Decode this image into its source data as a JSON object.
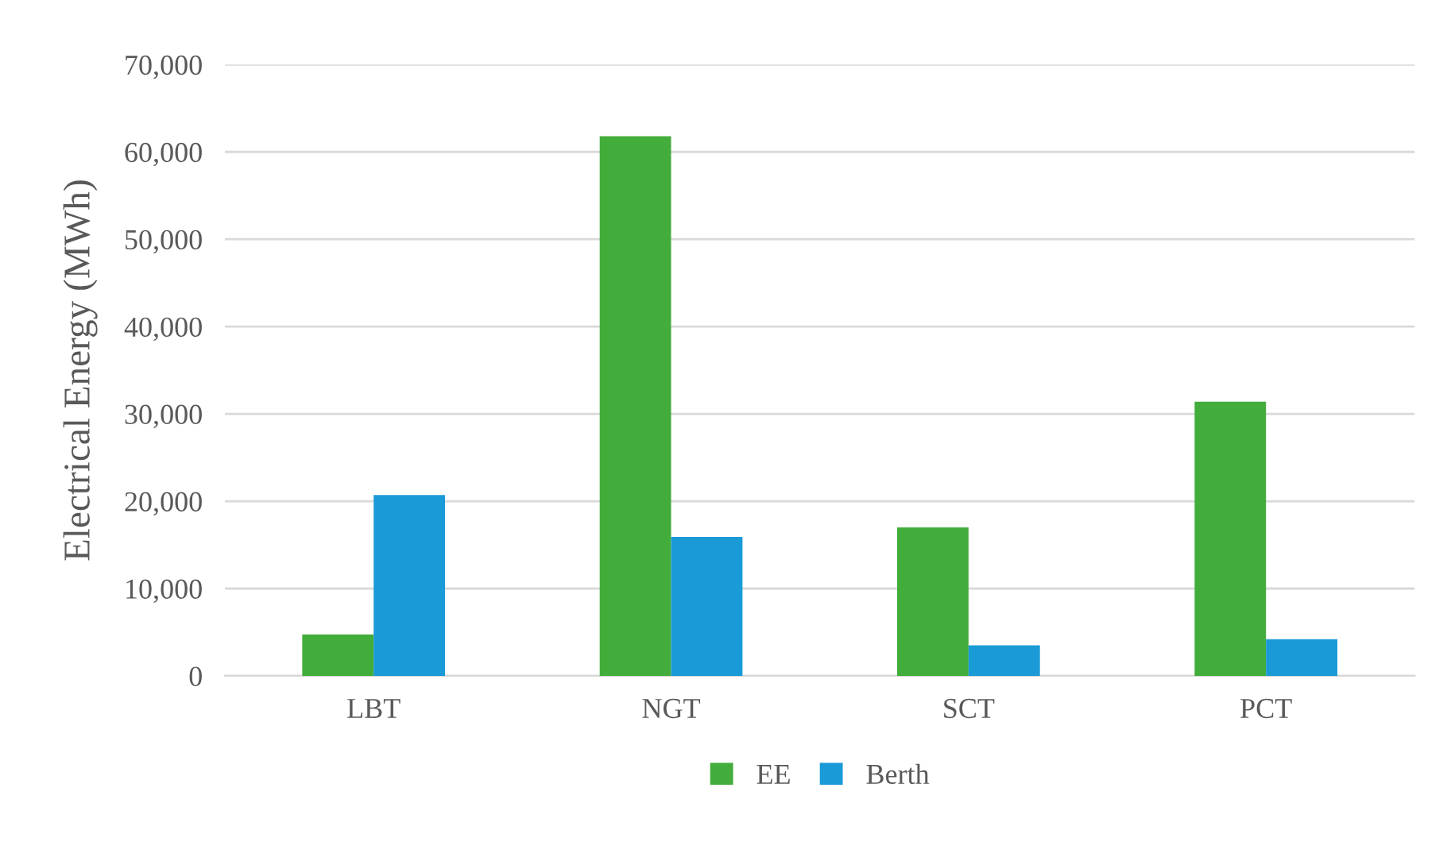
{
  "chart_data": {
    "type": "bar",
    "ylabel": "Electrical Energy (MWh)",
    "categories": [
      "LBT",
      "NGT",
      "SCT",
      "PCT"
    ],
    "series": [
      {
        "name": "EE",
        "color": "#42ad3a",
        "values": [
          4750,
          61800,
          17000,
          31400
        ]
      },
      {
        "name": "Berth",
        "color": "#1a9ad6",
        "values": [
          20700,
          15900,
          3500,
          4200
        ]
      }
    ],
    "ylim": [
      0,
      70000
    ],
    "yticks": [
      {
        "value": 0,
        "label": "0"
      },
      {
        "value": 10000,
        "label": "10,000"
      },
      {
        "value": 20000,
        "label": "20,000"
      },
      {
        "value": 30000,
        "label": "30,000"
      },
      {
        "value": 40000,
        "label": "40,000"
      },
      {
        "value": 50000,
        "label": "50,000"
      },
      {
        "value": 60000,
        "label": "60,000"
      },
      {
        "value": 70000,
        "label": "70,000"
      }
    ],
    "grid": "y",
    "legend": "bottom"
  }
}
